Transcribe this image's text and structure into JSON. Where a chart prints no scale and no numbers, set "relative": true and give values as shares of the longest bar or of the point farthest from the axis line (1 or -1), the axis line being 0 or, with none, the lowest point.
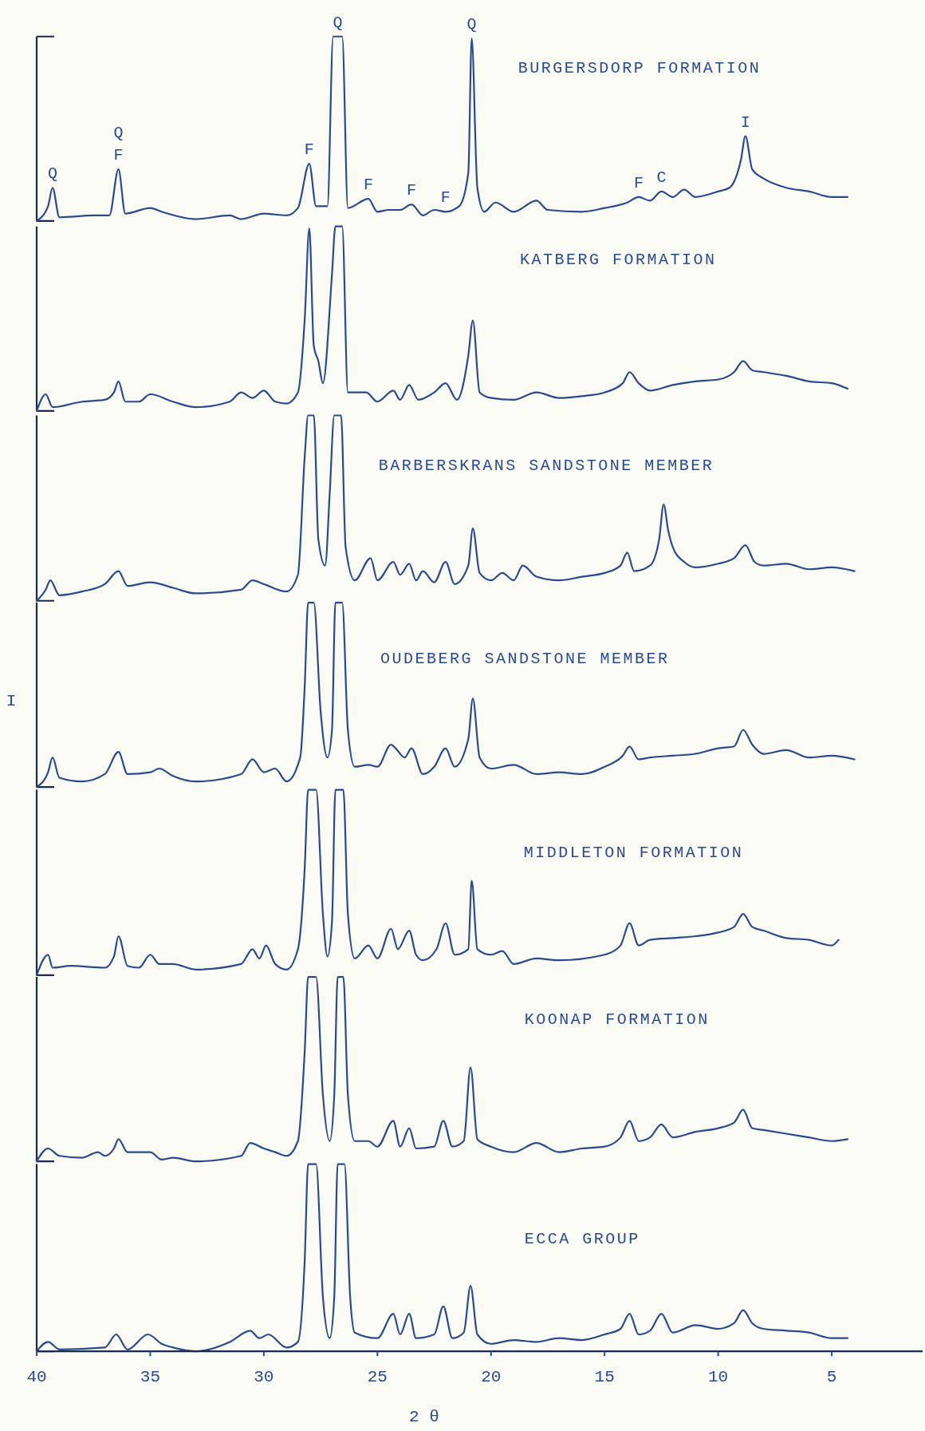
{
  "chart_data": [
    {
      "type": "line",
      "title": "BURGERSDORP FORMATION",
      "relative": true,
      "xlim": [
        40,
        1
      ],
      "tick_labels": false,
      "color": "#2b4a8e",
      "x": [
        40,
        39.5,
        39.3,
        39.0,
        37.5,
        36.8,
        36.4,
        36.1,
        35,
        34.5,
        33,
        31.5,
        31,
        30,
        29,
        28.5,
        28.0,
        27.7,
        27.2,
        26.95,
        26.55,
        26.3,
        25.4,
        25,
        24.5,
        24,
        23.5,
        23,
        22.5,
        22,
        21.4,
        21.0,
        20.85,
        20.6,
        20.3,
        19.8,
        19,
        18,
        17.5,
        16,
        15,
        14,
        13.5,
        13,
        12.5,
        12,
        11.5,
        11,
        10,
        9.5,
        9.0,
        8.8,
        8.5,
        8,
        7,
        6,
        5,
        4.3
      ],
      "values": [
        0,
        0.08,
        0.18,
        0.02,
        0.03,
        0.03,
        0.28,
        0.04,
        0.07,
        0.05,
        0.01,
        0.03,
        0.01,
        0.04,
        0.03,
        0.07,
        0.31,
        0.08,
        0.08,
        1,
        1,
        0.07,
        0.12,
        0.05,
        0.06,
        0.06,
        0.09,
        0.03,
        0.06,
        0.05,
        0.08,
        0.26,
        0.99,
        0.18,
        0.05,
        0.1,
        0.05,
        0.11,
        0.06,
        0.05,
        0.07,
        0.1,
        0.13,
        0.11,
        0.16,
        0.13,
        0.17,
        0.13,
        0.16,
        0.18,
        0.33,
        0.46,
        0.28,
        0.23,
        0.18,
        0.16,
        0.13,
        0.13
      ],
      "annotations": [
        {
          "text": "Q",
          "x": 39.3,
          "y": 0.18
        },
        {
          "text": "F",
          "x": 36.4,
          "y": 0.28
        },
        {
          "text": "Q",
          "x": 36.4,
          "y": 0.28
        },
        {
          "text": "F",
          "x": 28.0,
          "y": 0.31
        },
        {
          "text": "Q",
          "x": 26.75,
          "y": 1
        },
        {
          "text": "F",
          "x": 25.4,
          "y": 0.12
        },
        {
          "text": "F",
          "x": 23.5,
          "y": 0.09
        },
        {
          "text": "F",
          "x": 22.0,
          "y": 0.05
        },
        {
          "text": "Q",
          "x": 20.85,
          "y": 0.99
        },
        {
          "text": "F",
          "x": 13.5,
          "y": 0.13
        },
        {
          "text": "C",
          "x": 12.5,
          "y": 0.16
        },
        {
          "text": "I",
          "x": 8.8,
          "y": 0.46
        }
      ]
    },
    {
      "type": "line",
      "title": "KATBERG FORMATION",
      "relative": true,
      "xlim": [
        40,
        1
      ],
      "tick_labels": false,
      "color": "#2b4a8e",
      "x": [
        40,
        39.6,
        39.3,
        38,
        37,
        36.6,
        36.4,
        36.1,
        35.5,
        35,
        34,
        33,
        31.5,
        31,
        30.5,
        30,
        29.5,
        29,
        28.5,
        28.2,
        28.0,
        27.8,
        27.6,
        27.4,
        27.0,
        26.85,
        26.55,
        26.3,
        25.5,
        25,
        24.3,
        24,
        23.6,
        23.2,
        22.5,
        22.0,
        21.5,
        21.0,
        20.8,
        20.5,
        20,
        19,
        18,
        17,
        16,
        15,
        14.2,
        13.9,
        13.5,
        13,
        12,
        11,
        10,
        9.3,
        8.9,
        8.5,
        8,
        7,
        6,
        5,
        4.3
      ],
      "values": [
        0,
        0.09,
        0.02,
        0.05,
        0.06,
        0.1,
        0.16,
        0.05,
        0.05,
        0.09,
        0.05,
        0.02,
        0.05,
        0.1,
        0.07,
        0.11,
        0.05,
        0.04,
        0.1,
        0.5,
        0.99,
        0.35,
        0.27,
        0.15,
        0.74,
        1,
        1,
        0.1,
        0.1,
        0.05,
        0.11,
        0.06,
        0.14,
        0.06,
        0.1,
        0.15,
        0.06,
        0.3,
        0.49,
        0.1,
        0.07,
        0.06,
        0.1,
        0.07,
        0.08,
        0.1,
        0.15,
        0.21,
        0.15,
        0.11,
        0.14,
        0.16,
        0.17,
        0.21,
        0.27,
        0.22,
        0.21,
        0.19,
        0.16,
        0.15,
        0.12
      ]
    },
    {
      "type": "line",
      "title": "BARBERSKRANS SANDSTONE MEMBER",
      "relative": true,
      "xlim": [
        40,
        1
      ],
      "tick_labels": false,
      "color": "#2b4a8e",
      "x": [
        40,
        39.6,
        39.4,
        39,
        38,
        37,
        36.4,
        36,
        35,
        34,
        33,
        31,
        30.5,
        30,
        29,
        28.5,
        28.2,
        28.05,
        27.8,
        27.6,
        27.3,
        27.1,
        26.9,
        26.6,
        26.4,
        26,
        25.3,
        25,
        24.3,
        24,
        23.6,
        23.3,
        23,
        22.5,
        22.0,
        21.6,
        21,
        20.8,
        20.5,
        20,
        19.5,
        19,
        18.6,
        18,
        17,
        16,
        15,
        14.3,
        14,
        13.7,
        13,
        12.6,
        12.4,
        12.2,
        12,
        11.5,
        11,
        10,
        9.3,
        8.8,
        8.4,
        8,
        7,
        6,
        5,
        4
      ],
      "values": [
        0,
        0.06,
        0.11,
        0.03,
        0.05,
        0.09,
        0.16,
        0.08,
        0.1,
        0.07,
        0.04,
        0.06,
        0.11,
        0.09,
        0.05,
        0.14,
        0.78,
        1,
        1,
        0.33,
        0.19,
        0.58,
        1,
        1,
        0.29,
        0.11,
        0.23,
        0.11,
        0.21,
        0.14,
        0.2,
        0.11,
        0.16,
        0.1,
        0.21,
        0.09,
        0.19,
        0.39,
        0.15,
        0.11,
        0.15,
        0.11,
        0.19,
        0.13,
        0.11,
        0.13,
        0.15,
        0.19,
        0.26,
        0.16,
        0.19,
        0.33,
        0.52,
        0.38,
        0.29,
        0.21,
        0.18,
        0.2,
        0.23,
        0.3,
        0.21,
        0.19,
        0.2,
        0.17,
        0.18,
        0.16
      ]
    },
    {
      "type": "line",
      "title": "OUDEBERG SANDSTONE MEMBER",
      "ylabel": "I",
      "relative": true,
      "xlim": [
        40,
        1
      ],
      "tick_labels": false,
      "color": "#2b4a8e",
      "x": [
        40,
        39.5,
        39.3,
        39,
        38,
        37,
        36.4,
        36,
        35,
        34.6,
        34,
        33,
        31,
        30.5,
        30,
        29.5,
        29,
        28.4,
        28.2,
        28.05,
        27.8,
        27.5,
        27.2,
        27,
        26.85,
        26.55,
        26.3,
        26,
        25.4,
        25,
        24.4,
        24.2,
        23.8,
        23.5,
        23,
        22.5,
        22.0,
        21.6,
        21,
        20.8,
        20.5,
        20,
        19,
        18,
        17,
        16,
        15,
        14.2,
        13.9,
        13.5,
        13,
        12,
        11,
        10,
        9.3,
        8.9,
        8.5,
        8,
        7,
        6,
        5,
        4
      ],
      "values": [
        0,
        0.08,
        0.16,
        0.05,
        0.03,
        0.07,
        0.19,
        0.07,
        0.08,
        0.1,
        0.06,
        0.03,
        0.07,
        0.15,
        0.08,
        0.1,
        0.03,
        0.16,
        0.55,
        1,
        1,
        0.41,
        0.16,
        0.31,
        1,
        1,
        0.31,
        0.11,
        0.12,
        0.11,
        0.23,
        0.21,
        0.16,
        0.21,
        0.07,
        0.11,
        0.21,
        0.11,
        0.26,
        0.48,
        0.16,
        0.1,
        0.12,
        0.07,
        0.08,
        0.07,
        0.11,
        0.17,
        0.22,
        0.15,
        0.16,
        0.17,
        0.18,
        0.21,
        0.22,
        0.31,
        0.23,
        0.18,
        0.2,
        0.16,
        0.17,
        0.15
      ]
    },
    {
      "type": "line",
      "title": "MIDDLETON FORMATION",
      "relative": true,
      "xlim": [
        40,
        1
      ],
      "tick_labels": false,
      "color": "#2b4a8e",
      "x": [
        40,
        39.5,
        39.3,
        38.5,
        37,
        36.6,
        36.4,
        36,
        35.5,
        35,
        34.6,
        34,
        33,
        31,
        30.5,
        30.2,
        29.9,
        29.5,
        29,
        28.5,
        28.2,
        28.05,
        27.7,
        27.4,
        27.2,
        27,
        26.85,
        26.5,
        26.3,
        26,
        25.4,
        25,
        24.4,
        24.1,
        23.6,
        23.3,
        23,
        22.4,
        22.0,
        21.6,
        21,
        20.85,
        20.6,
        20,
        19.5,
        19,
        18,
        17,
        15,
        14.3,
        13.9,
        13.5,
        13,
        12,
        11,
        10,
        9.3,
        8.9,
        8.5,
        8,
        7,
        6,
        5,
        4.7
      ],
      "values": [
        0,
        0.11,
        0.04,
        0.05,
        0.04,
        0.1,
        0.21,
        0.05,
        0.04,
        0.11,
        0.06,
        0.06,
        0.03,
        0.06,
        0.14,
        0.09,
        0.16,
        0.06,
        0.03,
        0.14,
        0.58,
        1,
        1,
        0.33,
        0.1,
        0.29,
        1,
        1,
        0.33,
        0.09,
        0.16,
        0.09,
        0.25,
        0.14,
        0.24,
        0.11,
        0.08,
        0.14,
        0.28,
        0.11,
        0.14,
        0.51,
        0.14,
        0.11,
        0.13,
        0.06,
        0.09,
        0.08,
        0.11,
        0.16,
        0.28,
        0.16,
        0.19,
        0.2,
        0.21,
        0.23,
        0.26,
        0.33,
        0.26,
        0.24,
        0.2,
        0.19,
        0.16,
        0.19
      ]
    },
    {
      "type": "line",
      "title": "KOONAP FORMATION",
      "relative": true,
      "xlim": [
        40,
        1
      ],
      "tick_labels": false,
      "color": "#2b4a8e",
      "x": [
        40,
        39.5,
        39,
        38,
        37.3,
        37,
        36.6,
        36.4,
        36,
        35,
        34.5,
        34,
        33,
        31,
        30.6,
        30,
        29.5,
        29,
        28.5,
        28.2,
        28.05,
        27.7,
        27.4,
        27.1,
        26.9,
        26.75,
        26.5,
        26.3,
        26,
        25.4,
        25,
        24.3,
        24,
        23.6,
        23.3,
        22.5,
        22.1,
        21.7,
        21.2,
        20.9,
        20.6,
        20,
        19,
        18,
        17,
        16,
        15,
        14.3,
        13.9,
        13.5,
        13,
        12.5,
        12,
        11,
        10,
        9.3,
        8.9,
        8.5,
        8,
        7,
        6,
        5,
        4.3
      ],
      "values": [
        0,
        0.07,
        0.03,
        0.02,
        0.05,
        0.03,
        0.07,
        0.12,
        0.05,
        0.05,
        0.01,
        0.02,
        0,
        0.03,
        0.1,
        0.07,
        0.05,
        0.03,
        0.11,
        0.6,
        1,
        1,
        0.36,
        0.11,
        0.36,
        1,
        1,
        0.36,
        0.11,
        0.11,
        0.08,
        0.22,
        0.08,
        0.18,
        0.07,
        0.08,
        0.22,
        0.08,
        0.11,
        0.51,
        0.12,
        0.08,
        0.05,
        0.1,
        0.05,
        0.07,
        0.08,
        0.13,
        0.22,
        0.11,
        0.13,
        0.2,
        0.13,
        0.16,
        0.18,
        0.21,
        0.28,
        0.18,
        0.17,
        0.15,
        0.13,
        0.11,
        0.12
      ]
    },
    {
      "type": "line",
      "title": "ECCA GROUP",
      "xlabel": "2 θ",
      "relative": true,
      "xlim": [
        40,
        1
      ],
      "xticks": [
        40,
        35,
        30,
        25,
        20,
        15,
        10,
        5
      ],
      "tick_labels": "x",
      "color": "#2b4a8e",
      "x": [
        40,
        39.5,
        39,
        37,
        36.5,
        36,
        35.1,
        34.5,
        34,
        33,
        31.5,
        30.6,
        30.2,
        29.8,
        29,
        28.5,
        28.2,
        28.05,
        27.7,
        27.4,
        27.1,
        26.9,
        26.75,
        26.45,
        26.2,
        26,
        25,
        24.3,
        24,
        23.6,
        23.3,
        22.5,
        22.1,
        21.7,
        21.2,
        20.9,
        20.6,
        20,
        19,
        18,
        17,
        16,
        15,
        14.3,
        13.9,
        13.5,
        13,
        12.5,
        12,
        11,
        10,
        9.3,
        8.9,
        8.5,
        8,
        7,
        6,
        5,
        4.3
      ],
      "values": [
        0,
        0.05,
        0.01,
        0.02,
        0.09,
        0.01,
        0.09,
        0.04,
        0.02,
        0,
        0.05,
        0.11,
        0.07,
        0.09,
        0.02,
        0.05,
        0.49,
        1,
        1,
        0.29,
        0.07,
        0.29,
        1,
        1,
        0.29,
        0.1,
        0.07,
        0.2,
        0.09,
        0.2,
        0.07,
        0.09,
        0.24,
        0.07,
        0.1,
        0.35,
        0.09,
        0.04,
        0.06,
        0.05,
        0.07,
        0.06,
        0.09,
        0.12,
        0.2,
        0.09,
        0.11,
        0.2,
        0.1,
        0.14,
        0.12,
        0.15,
        0.22,
        0.15,
        0.12,
        0.11,
        0.1,
        0.07,
        0.07
      ]
    }
  ]
}
